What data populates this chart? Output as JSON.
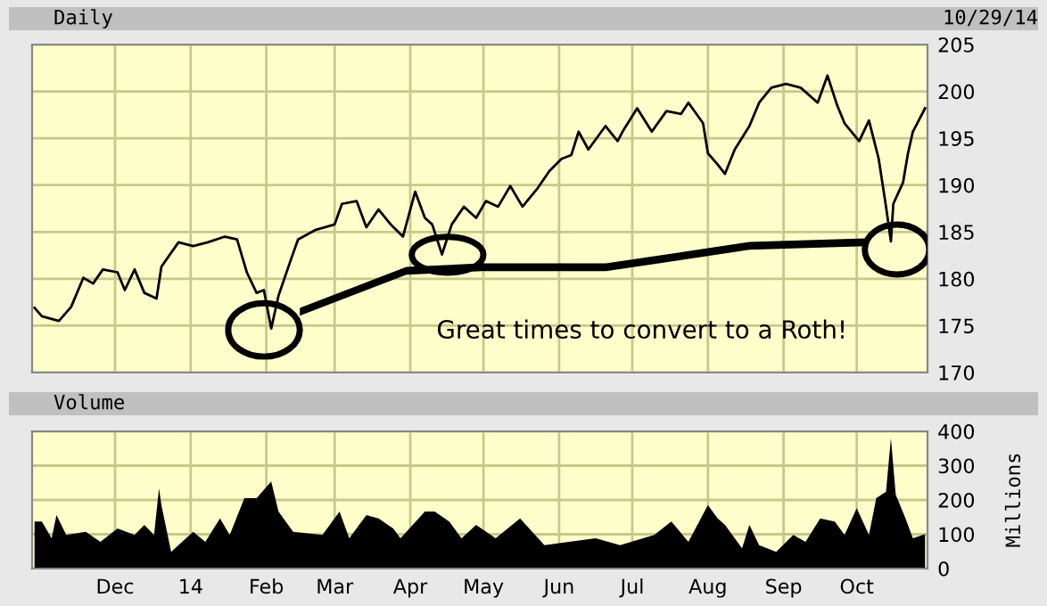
{
  "chart_data": [
    {
      "type": "line",
      "title": "Daily",
      "annotations": [
        "10/29/14",
        "Great times to convert to a Roth!"
      ],
      "grid": true,
      "tick_labels": "y",
      "xlim": [
        "2013-10-28",
        "2014-10-30"
      ],
      "ylim": [
        170,
        205
      ],
      "yticks": [
        170,
        175,
        180,
        185,
        190,
        195,
        200,
        205
      ],
      "xticks": [
        {
          "value": "2013-12-01",
          "label": null
        },
        {
          "value": "2014-01-01",
          "label": null
        },
        {
          "value": "2014-02-01",
          "label": null
        },
        {
          "value": "2014-03-01",
          "label": null
        },
        {
          "value": "2014-04-01",
          "label": null
        },
        {
          "value": "2014-05-01",
          "label": null
        },
        {
          "value": "2014-06-01",
          "label": null
        },
        {
          "value": "2014-07-01",
          "label": null
        },
        {
          "value": "2014-08-01",
          "label": null
        },
        {
          "value": "2014-09-01",
          "label": null
        },
        {
          "value": "2014-10-01",
          "label": null
        }
      ],
      "series": [
        {
          "color": "#000000",
          "x": [
            "2013-10-29",
            "2013-11-01",
            "2013-11-08",
            "2013-11-13",
            "2013-11-18",
            "2013-11-22",
            "2013-11-26",
            "2013-12-02",
            "2013-12-05",
            "2013-12-09",
            "2013-12-13",
            "2013-12-18",
            "2013-12-20",
            "2013-12-27",
            "2014-01-02",
            "2014-01-08",
            "2014-01-15",
            "2014-01-20",
            "2014-01-24",
            "2014-01-28",
            "2014-01-31",
            "2014-02-03",
            "2014-02-06",
            "2014-02-11",
            "2014-02-14",
            "2014-02-21",
            "2014-03-01",
            "2014-03-04",
            "2014-03-10",
            "2014-03-14",
            "2014-03-19",
            "2014-03-24",
            "2014-03-29",
            "2014-04-03",
            "2014-04-07",
            "2014-04-10",
            "2014-04-14",
            "2014-04-18",
            "2014-04-23",
            "2014-04-28",
            "2014-05-02",
            "2014-05-07",
            "2014-05-12",
            "2014-05-17",
            "2014-05-23",
            "2014-05-28",
            "2014-06-02",
            "2014-06-06",
            "2014-06-09",
            "2014-06-13",
            "2014-06-20",
            "2014-06-25",
            "2014-06-27",
            "2014-07-03",
            "2014-07-09",
            "2014-07-15",
            "2014-07-21",
            "2014-07-24",
            "2014-07-30",
            "2014-08-01",
            "2014-08-05",
            "2014-08-08",
            "2014-08-12",
            "2014-08-18",
            "2014-08-22",
            "2014-08-27",
            "2014-09-02",
            "2014-09-08",
            "2014-09-15",
            "2014-09-19",
            "2014-09-23",
            "2014-09-26",
            "2014-10-02",
            "2014-10-06",
            "2014-10-10",
            "2014-10-13",
            "2014-10-15",
            "2014-10-16",
            "2014-10-20",
            "2014-10-22",
            "2014-10-24",
            "2014-10-29"
          ],
          "values": [
            176.9,
            176.0,
            175.5,
            177.0,
            180.1,
            179.5,
            181.0,
            180.7,
            178.8,
            181.0,
            178.5,
            177.9,
            181.3,
            183.9,
            183.5,
            183.9,
            184.5,
            184.2,
            180.7,
            178.5,
            178.8,
            174.7,
            178.2,
            182.0,
            184.2,
            185.2,
            185.8,
            188.0,
            188.3,
            185.5,
            187.4,
            185.8,
            184.5,
            189.3,
            186.5,
            185.8,
            182.6,
            185.8,
            187.7,
            186.5,
            188.3,
            187.7,
            189.9,
            187.7,
            189.6,
            191.5,
            192.8,
            193.2,
            195.7,
            193.8,
            196.3,
            194.7,
            195.7,
            198.2,
            195.7,
            197.9,
            197.6,
            198.8,
            196.6,
            193.4,
            192.2,
            191.2,
            193.8,
            196.3,
            198.8,
            200.4,
            200.8,
            200.4,
            198.8,
            201.7,
            198.5,
            196.6,
            194.7,
            196.9,
            192.8,
            187.7,
            184.0,
            188.0,
            190.3,
            193.4,
            195.7,
            198.2
          ]
        }
      ]
    },
    {
      "type": "area",
      "title": "Volume",
      "ylabel": "Millions",
      "grid": true,
      "xlim": [
        "2013-10-28",
        "2014-10-30"
      ],
      "ylim": [
        0,
        400
      ],
      "yticks": [
        0,
        100,
        200,
        300,
        400
      ],
      "xticks": [
        {
          "value": "2013-12-01",
          "label": "Dec"
        },
        {
          "value": "2014-01-01",
          "label": "14"
        },
        {
          "value": "2014-02-01",
          "label": "Feb"
        },
        {
          "value": "2014-03-01",
          "label": "Mar"
        },
        {
          "value": "2014-04-01",
          "label": "Apr"
        },
        {
          "value": "2014-05-01",
          "label": "May"
        },
        {
          "value": "2014-06-01",
          "label": "Jun"
        },
        {
          "value": "2014-07-01",
          "label": "Jul"
        },
        {
          "value": "2014-08-01",
          "label": "Aug"
        },
        {
          "value": "2014-09-01",
          "label": "Sep"
        },
        {
          "value": "2014-10-01",
          "label": "Oct"
        }
      ],
      "series": [
        {
          "color": "#000000",
          "x": [
            "2013-10-29",
            "2013-11-01",
            "2013-11-05",
            "2013-11-07",
            "2013-11-11",
            "2013-11-19",
            "2013-11-25",
            "2013-12-02",
            "2013-12-09",
            "2013-12-13",
            "2013-12-17",
            "2013-12-19",
            "2013-12-20",
            "2013-12-24",
            "2014-01-02",
            "2014-01-07",
            "2014-01-13",
            "2014-01-17",
            "2014-01-23",
            "2014-01-28",
            "2014-02-03",
            "2014-02-06",
            "2014-02-12",
            "2014-02-24",
            "2014-03-03",
            "2014-03-07",
            "2014-03-14",
            "2014-03-19",
            "2014-03-25",
            "2014-03-28",
            "2014-04-07",
            "2014-04-11",
            "2014-04-17",
            "2014-04-22",
            "2014-04-28",
            "2014-05-06",
            "2014-05-16",
            "2014-05-26",
            "2014-06-05",
            "2014-06-16",
            "2014-06-26",
            "2014-07-10",
            "2014-07-17",
            "2014-07-24",
            "2014-08-01",
            "2014-08-05",
            "2014-08-08",
            "2014-08-15",
            "2014-08-18",
            "2014-08-22",
            "2014-08-29",
            "2014-09-05",
            "2014-09-10",
            "2014-09-16",
            "2014-09-22",
            "2014-09-26",
            "2014-10-01",
            "2014-10-06",
            "2014-10-09",
            "2014-10-13",
            "2014-10-15",
            "2014-10-17",
            "2014-10-21",
            "2014-10-24",
            "2014-10-28",
            "2014-10-29"
          ],
          "values": [
            137,
            137,
            88,
            156,
            98,
            107,
            78,
            117,
            98,
            127,
            98,
            234,
            185,
            49,
            107,
            78,
            146,
            98,
            205,
            205,
            254,
            166,
            107,
            98,
            166,
            88,
            156,
            146,
            117,
            88,
            166,
            166,
            137,
            88,
            127,
            88,
            146,
            68,
            78,
            88,
            68,
            98,
            137,
            78,
            185,
            146,
            127,
            59,
            127,
            68,
            49,
            98,
            78,
            146,
            137,
            98,
            176,
            98,
            205,
            224,
            380,
            215,
            146,
            88,
            98,
            100
          ]
        }
      ]
    }
  ]
}
